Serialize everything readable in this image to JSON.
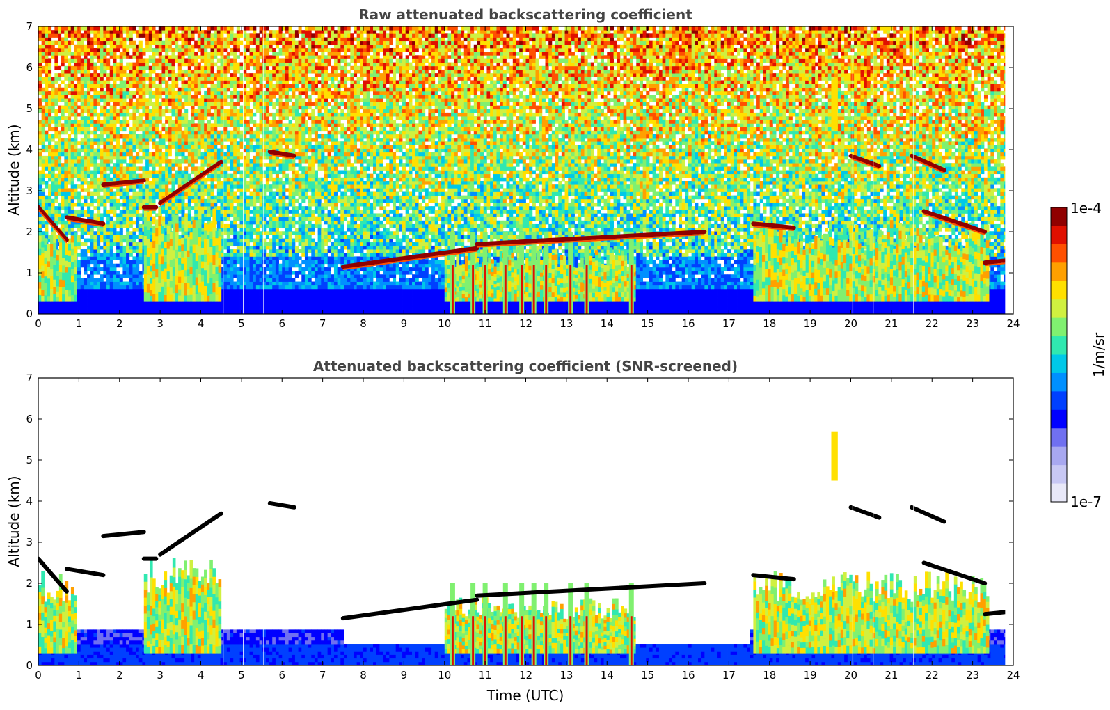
{
  "chart_data": [
    {
      "type": "heatmap",
      "title": "Raw attenuated backscattering coefficient",
      "xlabel": "",
      "ylabel": "Altitude (km)",
      "xlim": [
        0,
        24
      ],
      "ylim": [
        0,
        7
      ],
      "x_ticks": [
        "0",
        "1",
        "2",
        "3",
        "4",
        "5",
        "6",
        "7",
        "8",
        "9",
        "10",
        "11",
        "12",
        "13",
        "14",
        "15",
        "16",
        "17",
        "18",
        "19",
        "20",
        "21",
        "22",
        "23",
        "24"
      ],
      "y_ticks": [
        "0",
        "1",
        "2",
        "3",
        "4",
        "5",
        "6",
        "7"
      ],
      "screened": false,
      "features": {
        "boundary_layer": [
          {
            "t0": 0.0,
            "t1": 0.95,
            "top": 2.2
          },
          {
            "t0": 2.6,
            "t1": 4.5,
            "top": 2.5
          },
          {
            "t0": 10.0,
            "t1": 14.7,
            "top": 1.6
          },
          {
            "t0": 17.6,
            "t1": 23.4,
            "top": 2.2
          }
        ],
        "cloud_layers": [
          {
            "t0": 0.0,
            "t1": 0.7,
            "alt0": 2.6,
            "alt1": 1.8
          },
          {
            "t0": 0.7,
            "t1": 1.6,
            "alt0": 2.35,
            "alt1": 2.2
          },
          {
            "t0": 1.6,
            "t1": 2.6,
            "alt0": 3.15,
            "alt1": 3.25
          },
          {
            "t0": 2.6,
            "t1": 2.9,
            "alt0": 2.6,
            "alt1": 2.6
          },
          {
            "t0": 3.0,
            "t1": 4.5,
            "alt0": 2.7,
            "alt1": 3.7
          },
          {
            "t0": 5.7,
            "t1": 6.3,
            "alt0": 3.95,
            "alt1": 3.85
          },
          {
            "t0": 7.5,
            "t1": 10.8,
            "alt0": 1.15,
            "alt1": 1.6
          },
          {
            "t0": 10.8,
            "t1": 16.4,
            "alt0": 1.7,
            "alt1": 2.0
          },
          {
            "t0": 17.6,
            "t1": 18.6,
            "alt0": 2.2,
            "alt1": 2.1
          },
          {
            "t0": 20.0,
            "t1": 20.7,
            "alt0": 3.85,
            "alt1": 3.6
          },
          {
            "t0": 21.5,
            "t1": 22.3,
            "alt0": 3.85,
            "alt1": 3.5
          },
          {
            "t0": 21.8,
            "t1": 23.3,
            "alt0": 2.5,
            "alt1": 2.0
          },
          {
            "t0": 23.3,
            "t1": 23.8,
            "alt0": 1.25,
            "alt1": 1.3
          }
        ],
        "precipitation_columns": [
          10.2,
          10.7,
          11.0,
          11.5,
          11.9,
          12.2,
          12.5,
          13.1,
          13.5,
          14.6
        ],
        "high_cloud": [
          {
            "t": 19.6,
            "alt0": 4.5,
            "alt1": 5.7
          }
        ]
      }
    },
    {
      "type": "heatmap",
      "title": "Attenuated backscattering coefficient (SNR-screened)",
      "xlabel": "Time (UTC)",
      "ylabel": "Altitude (km)",
      "xlim": [
        0,
        24
      ],
      "ylim": [
        0,
        7
      ],
      "x_ticks": [
        "0",
        "1",
        "2",
        "3",
        "4",
        "5",
        "6",
        "7",
        "8",
        "9",
        "10",
        "11",
        "12",
        "13",
        "14",
        "15",
        "16",
        "17",
        "18",
        "19",
        "20",
        "21",
        "22",
        "23",
        "24"
      ],
      "y_ticks": [
        "0",
        "1",
        "2",
        "3",
        "4",
        "5",
        "6",
        "7"
      ],
      "screened": true
    }
  ],
  "colorbar": {
    "max_label": "1e-4",
    "min_label": "1e-7",
    "unit_label": "1/m/sr",
    "colors": [
      "#e8e8f8",
      "#c8c8f4",
      "#a8a8f0",
      "#7070f0",
      "#0000ff",
      "#0040ff",
      "#0090ff",
      "#00c8e8",
      "#30e8b0",
      "#80f070",
      "#d0f040",
      "#ffe000",
      "#ffa000",
      "#ff5000",
      "#e01000",
      "#900000"
    ]
  },
  "colors": {
    "axis": "#000000",
    "title": "#444444",
    "screened_cloud_base": "#000000"
  }
}
